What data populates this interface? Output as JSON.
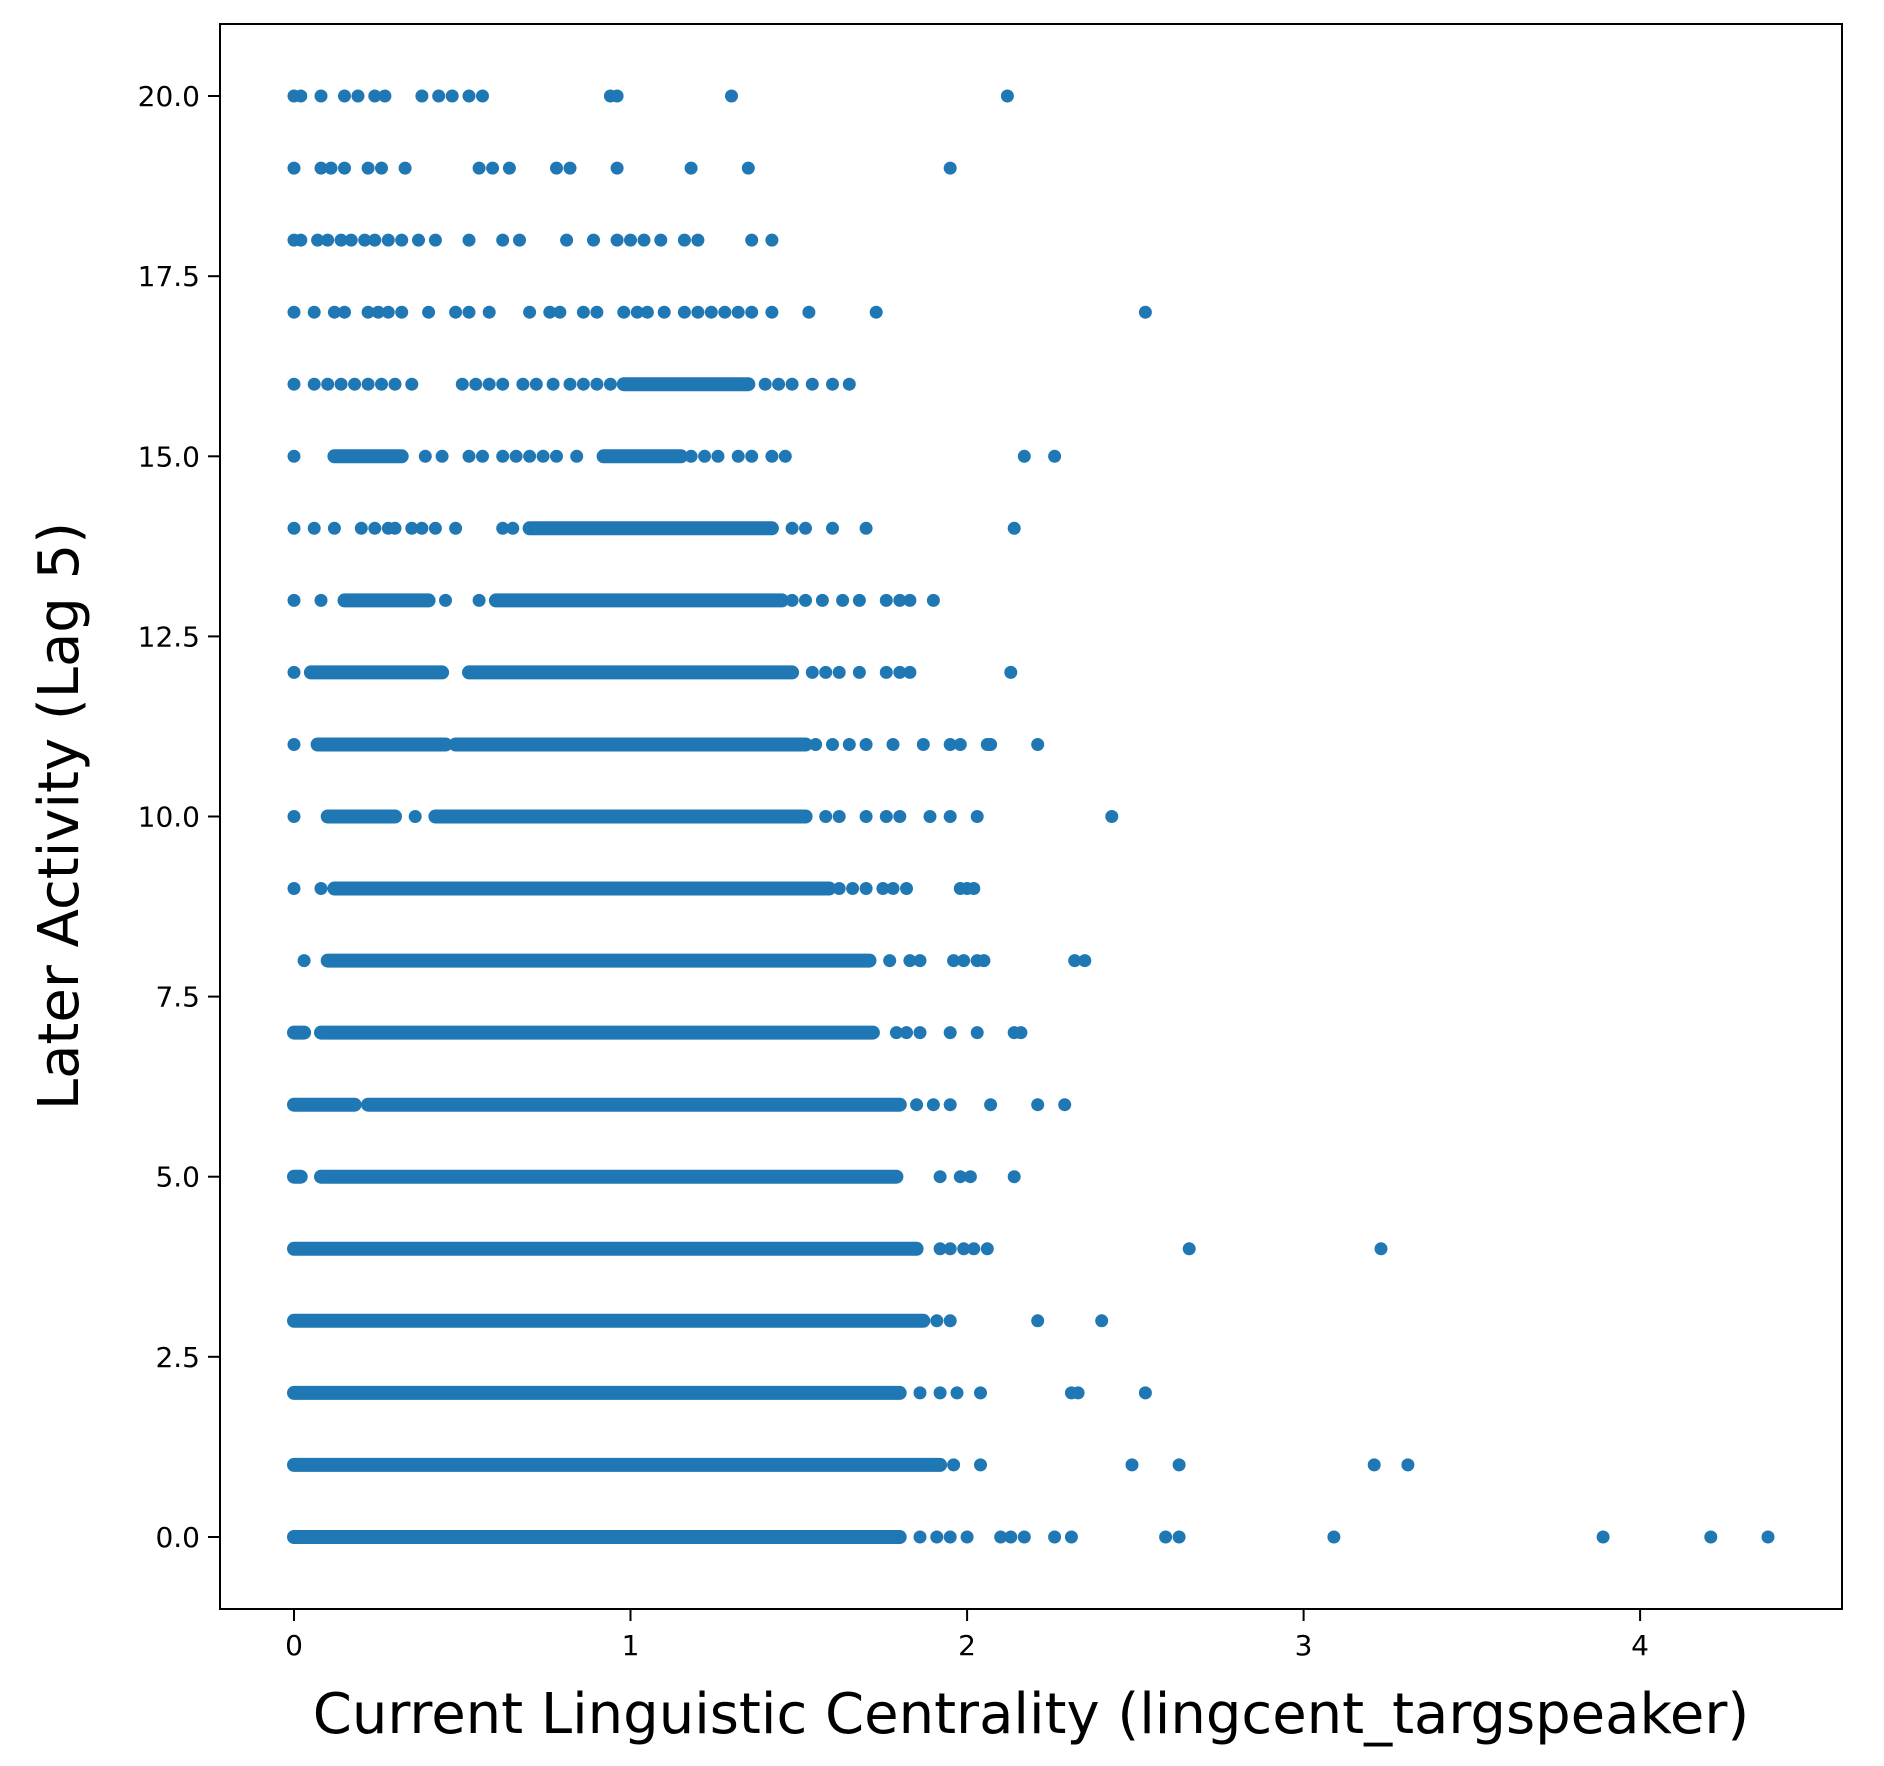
{
  "chart_data": {
    "type": "scatter",
    "title": "",
    "xlabel": "Current Linguistic Centrality (lingcent_targspeaker)",
    "ylabel": "Later Activity (Lag 5)",
    "xlim": [
      -0.22,
      4.6
    ],
    "ylim": [
      -1.0,
      21.0
    ],
    "x_ticks": [
      0,
      1,
      2,
      3,
      4
    ],
    "x_tick_labels": [
      "0",
      "1",
      "2",
      "3",
      "4"
    ],
    "y_ticks": [
      0,
      2.5,
      5,
      7.5,
      10,
      12.5,
      15,
      17.5,
      20
    ],
    "y_tick_labels": [
      "0.0",
      "2.5",
      "5.0",
      "7.5",
      "10.0",
      "12.5",
      "15.0",
      "17.5",
      "20.0"
    ],
    "grid": false,
    "legend": "none",
    "marker_color": "#1f77b4",
    "series": [
      {
        "rows": [
          {
            "y": 0,
            "bands": [
              [
                0,
                1.8
              ]
            ],
            "x": [
              1.86,
              1.91,
              1.95,
              2.0,
              2.1,
              2.13,
              2.17,
              2.26,
              2.31,
              2.59,
              2.63,
              3.09,
              3.89,
              4.21,
              4.38
            ]
          },
          {
            "y": 1,
            "bands": [
              [
                0,
                1.92
              ]
            ],
            "x": [
              1.96,
              2.04,
              2.49,
              2.63,
              3.21,
              3.31
            ]
          },
          {
            "y": 2,
            "bands": [
              [
                0,
                1.8
              ]
            ],
            "x": [
              1.86,
              1.92,
              1.97,
              2.04,
              2.31,
              2.33,
              2.53
            ]
          },
          {
            "y": 3,
            "bands": [
              [
                0,
                1.87
              ]
            ],
            "x": [
              1.91,
              1.95,
              2.21,
              2.4
            ]
          },
          {
            "y": 4,
            "bands": [
              [
                0,
                1.85
              ]
            ],
            "x": [
              1.92,
              1.95,
              1.99,
              2.02,
              2.06,
              2.66,
              3.23
            ]
          },
          {
            "y": 5,
            "bands": [
              [
                0,
                0.02
              ],
              [
                0.08,
                1.79
              ]
            ],
            "x": [
              1.92,
              1.98,
              2.01,
              2.14
            ]
          },
          {
            "y": 6,
            "bands": [
              [
                0,
                0.18
              ],
              [
                0.22,
                1.8
              ]
            ],
            "x": [
              1.85,
              1.9,
              1.95,
              2.07,
              2.21,
              2.29
            ]
          },
          {
            "y": 7,
            "bands": [
              [
                0,
                0.03
              ],
              [
                0.08,
                1.72
              ]
            ],
            "x": [
              1.79,
              1.82,
              1.86,
              1.95,
              2.03,
              2.14,
              2.16
            ]
          },
          {
            "y": 8,
            "bands": [
              [
                0.1,
                1.71
              ]
            ],
            "x": [
              0.03,
              1.77,
              1.83,
              1.86,
              1.96,
              1.99,
              2.03,
              2.05,
              2.32,
              2.35
            ]
          },
          {
            "y": 9,
            "bands": [
              [
                0.12,
                1.59
              ]
            ],
            "x": [
              0,
              0.08,
              1.62,
              1.66,
              1.7,
              1.75,
              1.78,
              1.82,
              1.98,
              2.0,
              2.02
            ]
          },
          {
            "y": 10,
            "bands": [
              [
                0.1,
                0.3
              ],
              [
                0.42,
                1.52
              ]
            ],
            "x": [
              0,
              0.36,
              1.58,
              1.62,
              1.7,
              1.76,
              1.8,
              1.89,
              1.95,
              2.03,
              2.43
            ]
          },
          {
            "y": 11,
            "bands": [
              [
                0.07,
                0.45
              ],
              [
                0.48,
                1.52
              ]
            ],
            "x": [
              0,
              1.55,
              1.6,
              1.65,
              1.7,
              1.78,
              1.87,
              1.95,
              1.98,
              2.06,
              2.07,
              2.21
            ]
          },
          {
            "y": 12,
            "bands": [
              [
                0.05,
                0.44
              ],
              [
                0.52,
                1.48
              ]
            ],
            "x": [
              0,
              1.54,
              1.58,
              1.62,
              1.68,
              1.76,
              1.8,
              1.83,
              2.13
            ]
          },
          {
            "y": 13,
            "bands": [
              [
                0.15,
                0.4
              ],
              [
                0.6,
                1.45
              ]
            ],
            "x": [
              0,
              0.08,
              0.45,
              0.55,
              1.48,
              1.52,
              1.57,
              1.63,
              1.68,
              1.76,
              1.8,
              1.83,
              1.9
            ]
          },
          {
            "y": 14,
            "bands": [
              [
                0.7,
                1.42
              ]
            ],
            "x": [
              0,
              0.06,
              0.12,
              0.2,
              0.24,
              0.28,
              0.3,
              0.35,
              0.38,
              0.42,
              0.48,
              0.62,
              0.65,
              1.48,
              1.52,
              1.6,
              1.7,
              2.14
            ]
          },
          {
            "y": 15,
            "bands": [
              [
                0.12,
                0.32
              ],
              [
                0.92,
                1.15
              ]
            ],
            "x": [
              0,
              0.39,
              0.44,
              0.52,
              0.56,
              0.62,
              0.66,
              0.7,
              0.74,
              0.78,
              0.84,
              1.18,
              1.22,
              1.26,
              1.32,
              1.36,
              1.42,
              1.46,
              2.17,
              2.26
            ]
          },
          {
            "y": 16,
            "bands": [
              [
                0.98,
                1.35
              ]
            ],
            "x": [
              0,
              0.06,
              0.1,
              0.14,
              0.18,
              0.22,
              0.26,
              0.3,
              0.35,
              0.5,
              0.54,
              0.58,
              0.62,
              0.68,
              0.72,
              0.77,
              0.82,
              0.86,
              0.9,
              0.94,
              1.4,
              1.44,
              1.48,
              1.54,
              1.6,
              1.65
            ]
          },
          {
            "y": 17,
            "bands": [],
            "x": [
              0,
              0.06,
              0.12,
              0.15,
              0.22,
              0.25,
              0.28,
              0.32,
              0.4,
              0.48,
              0.52,
              0.58,
              0.7,
              0.76,
              0.79,
              0.86,
              0.9,
              0.98,
              1.02,
              1.05,
              1.1,
              1.16,
              1.2,
              1.24,
              1.28,
              1.32,
              1.36,
              1.42,
              1.53,
              1.73,
              2.53
            ]
          },
          {
            "y": 18,
            "bands": [],
            "x": [
              0,
              0.02,
              0.07,
              0.1,
              0.14,
              0.17,
              0.21,
              0.24,
              0.28,
              0.32,
              0.37,
              0.42,
              0.52,
              0.62,
              0.67,
              0.81,
              0.89,
              0.96,
              1.0,
              1.04,
              1.09,
              1.16,
              1.2,
              1.36,
              1.42
            ]
          },
          {
            "y": 19,
            "bands": [],
            "x": [
              0,
              0.08,
              0.11,
              0.15,
              0.22,
              0.26,
              0.33,
              0.55,
              0.59,
              0.64,
              0.78,
              0.82,
              0.96,
              1.18,
              1.35,
              1.95
            ]
          },
          {
            "y": 20,
            "bands": [],
            "x": [
              0,
              0.02,
              0.08,
              0.15,
              0.19,
              0.24,
              0.27,
              0.38,
              0.43,
              0.47,
              0.52,
              0.56,
              0.94,
              0.96,
              1.3,
              2.12
            ]
          }
        ]
      }
    ]
  }
}
